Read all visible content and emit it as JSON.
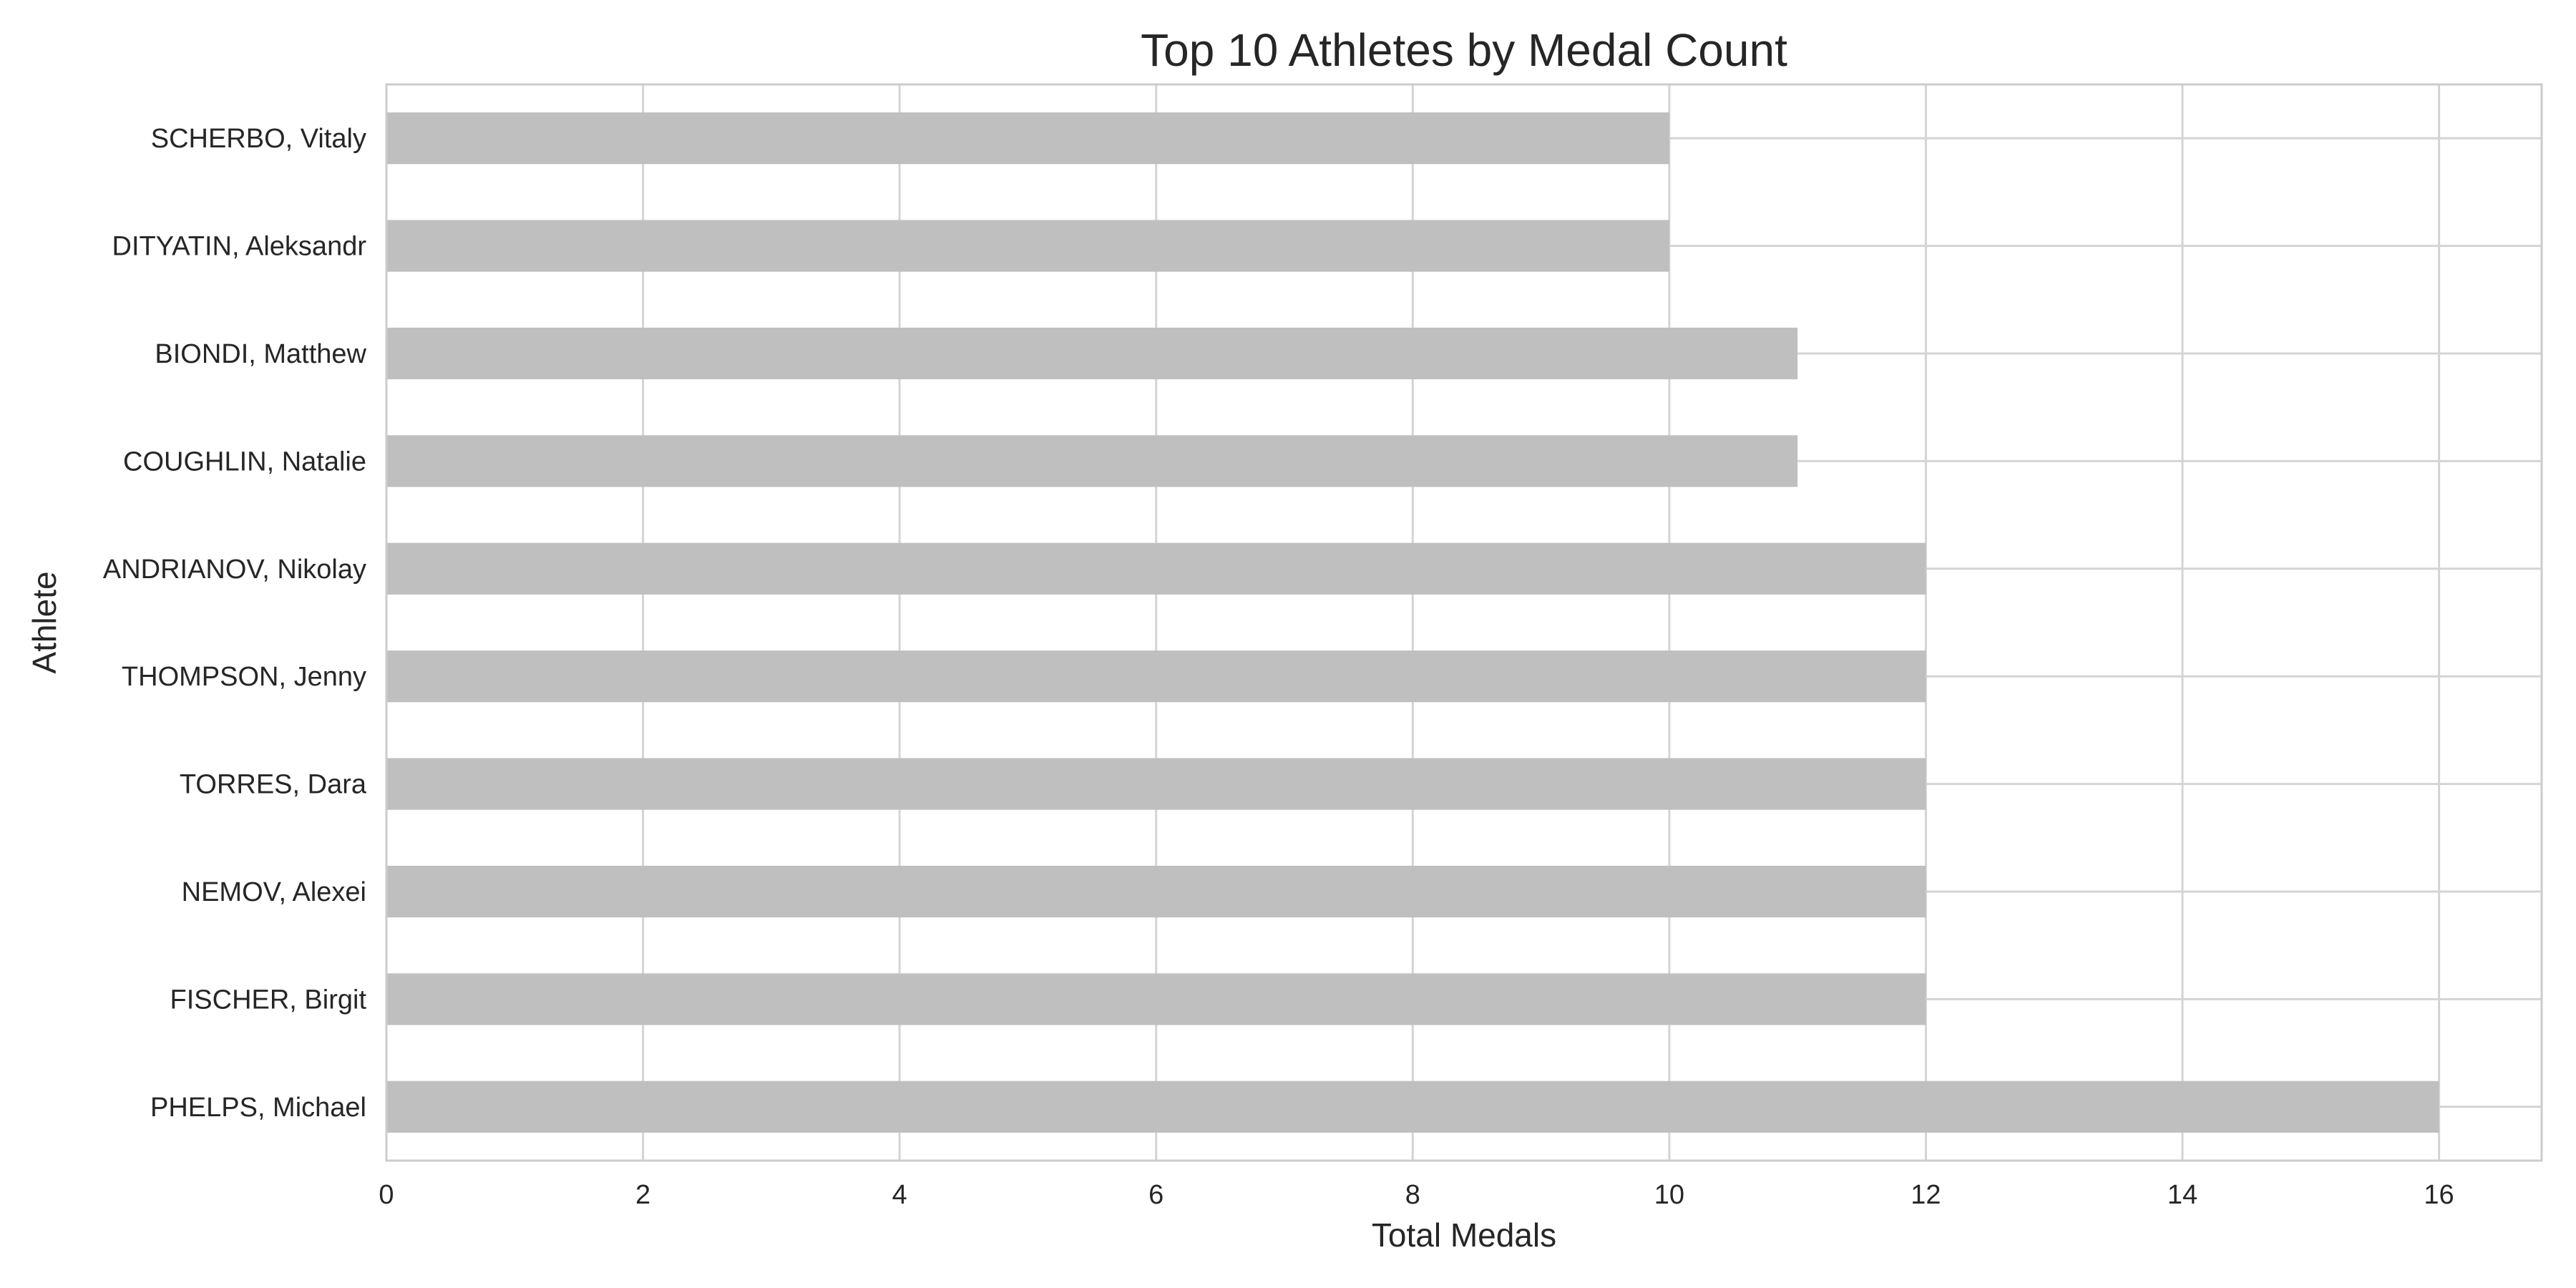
{
  "chart_data": {
    "type": "bar",
    "orientation": "horizontal",
    "title": "Top 10 Athletes by Medal Count",
    "xlabel": "Total Medals",
    "ylabel": "Athlete",
    "categories": [
      "SCHERBO, Vitaly",
      "DITYATIN, Aleksandr",
      "BIONDI, Matthew",
      "COUGHLIN, Natalie",
      "ANDRIANOV, Nikolay",
      "THOMPSON, Jenny",
      "TORRES, Dara",
      "NEMOV, Alexei",
      "FISCHER, Birgit",
      "PHELPS, Michael"
    ],
    "values": [
      10,
      10,
      11,
      11,
      12,
      12,
      12,
      12,
      12,
      16
    ],
    "xlim": [
      0,
      16.8
    ],
    "xticks": [
      0,
      2,
      4,
      6,
      8,
      10,
      12,
      14,
      16
    ],
    "grid": true,
    "bar_color": "#bfbfbf",
    "grid_color": "#d4d4d4",
    "frame_color": "#cccccc",
    "text_color": "#262626"
  }
}
